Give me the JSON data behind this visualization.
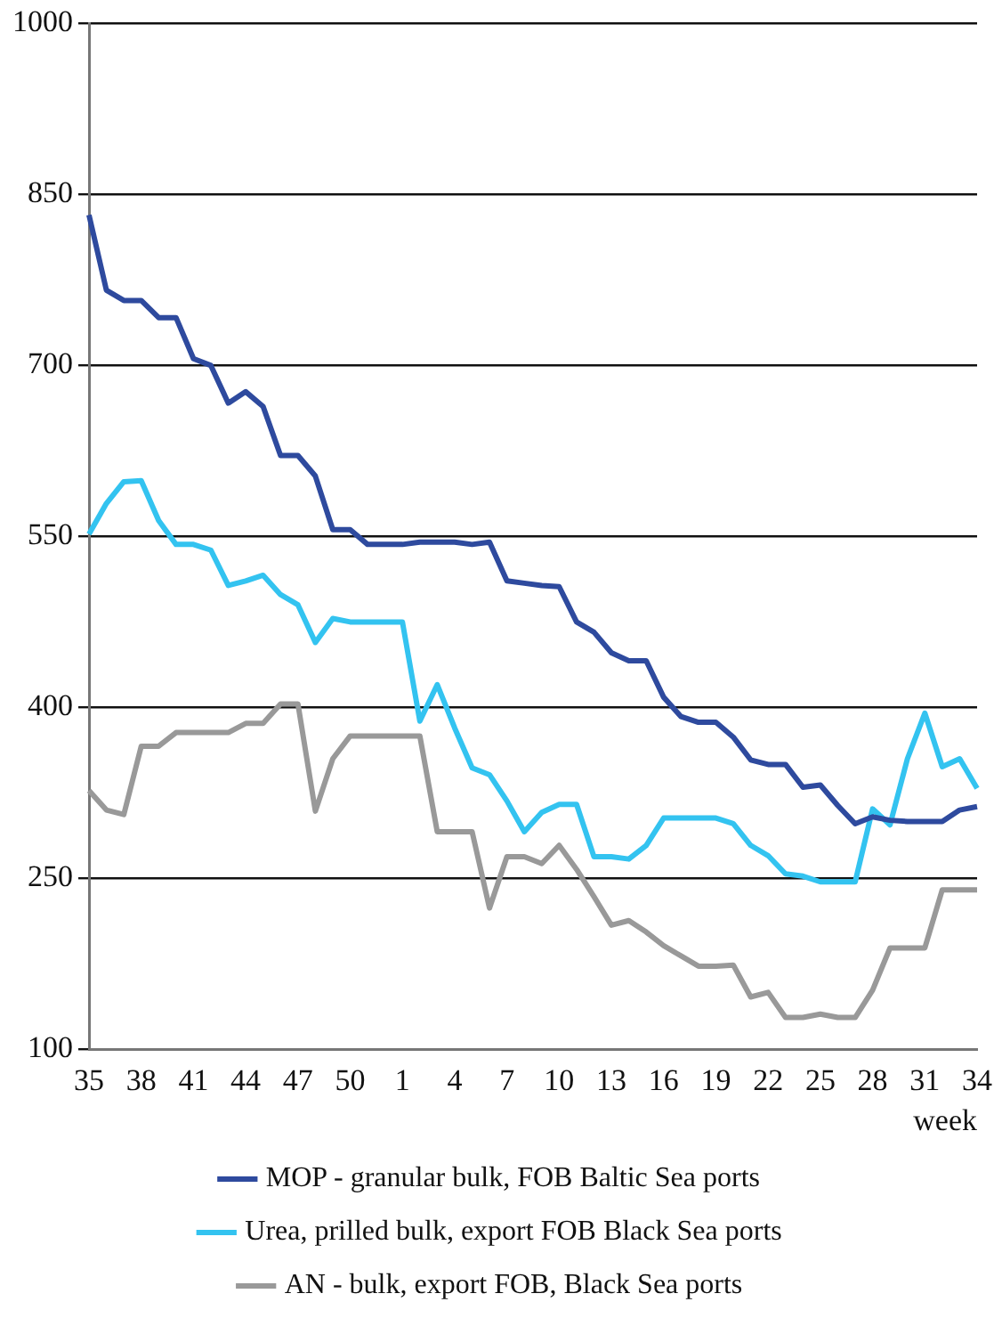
{
  "chart_data": {
    "type": "line",
    "xlabel": "week",
    "categories": [
      "35",
      null,
      null,
      "38",
      null,
      null,
      "41",
      null,
      null,
      "44",
      null,
      null,
      "47",
      null,
      null,
      "50",
      null,
      null,
      "1",
      null,
      null,
      "4",
      null,
      null,
      "7",
      null,
      null,
      "10",
      null,
      null,
      "13",
      null,
      null,
      "16",
      null,
      null,
      "19",
      null,
      null,
      "22",
      null,
      null,
      "25",
      null,
      null,
      "28",
      null,
      null,
      "31",
      null,
      null,
      "34"
    ],
    "series": [
      {
        "name": "MOP - granular bulk, FOB Baltic Sea ports",
        "color": "#2e4a9e",
        "values": [
          832,
          766,
          757,
          757,
          742,
          742,
          706,
          700,
          667,
          677,
          664,
          621,
          621,
          603,
          556,
          556,
          543,
          543,
          543,
          545,
          545,
          545,
          543,
          545,
          511,
          509,
          507,
          506,
          475,
          466,
          448,
          441,
          441,
          409,
          392,
          387,
          387,
          374,
          354,
          350,
          350,
          330,
          332,
          314,
          298,
          304,
          301,
          300,
          300,
          300,
          310,
          313
        ]
      },
      {
        "name": "Urea, prilled bulk, export FOB Black Sea ports",
        "color": "#33c3f0",
        "values": [
          552,
          579,
          598,
          599,
          564,
          543,
          543,
          538,
          507,
          511,
          516,
          499,
          490,
          457,
          478,
          475,
          475,
          475,
          475,
          388,
          420,
          382,
          347,
          341,
          318,
          291,
          308,
          315,
          315,
          269,
          269,
          267,
          279,
          303,
          303,
          303,
          303,
          298,
          279,
          270,
          254,
          252,
          247,
          247,
          247,
          311,
          297,
          355,
          395,
          348,
          355,
          329
        ]
      },
      {
        "name": "AN - bulk, export FOB, Black Sea ports",
        "color": "#999999",
        "values": [
          327,
          310,
          306,
          366,
          366,
          378,
          378,
          378,
          378,
          386,
          386,
          403,
          403,
          309,
          355,
          375,
          375,
          375,
          375,
          375,
          291,
          291,
          291,
          224,
          269,
          269,
          263,
          279,
          258,
          234,
          209,
          213,
          203,
          191,
          182,
          173,
          173,
          174,
          146,
          150,
          128,
          128,
          131,
          128,
          128,
          152,
          189,
          189,
          189,
          240,
          240,
          240
        ]
      }
    ],
    "ylim": [
      100,
      1000
    ],
    "yticks": [
      100,
      250,
      400,
      550,
      700,
      850,
      1000
    ],
    "grid": "y",
    "legend": "bottom",
    "marker": "none",
    "line_style": "solid"
  }
}
